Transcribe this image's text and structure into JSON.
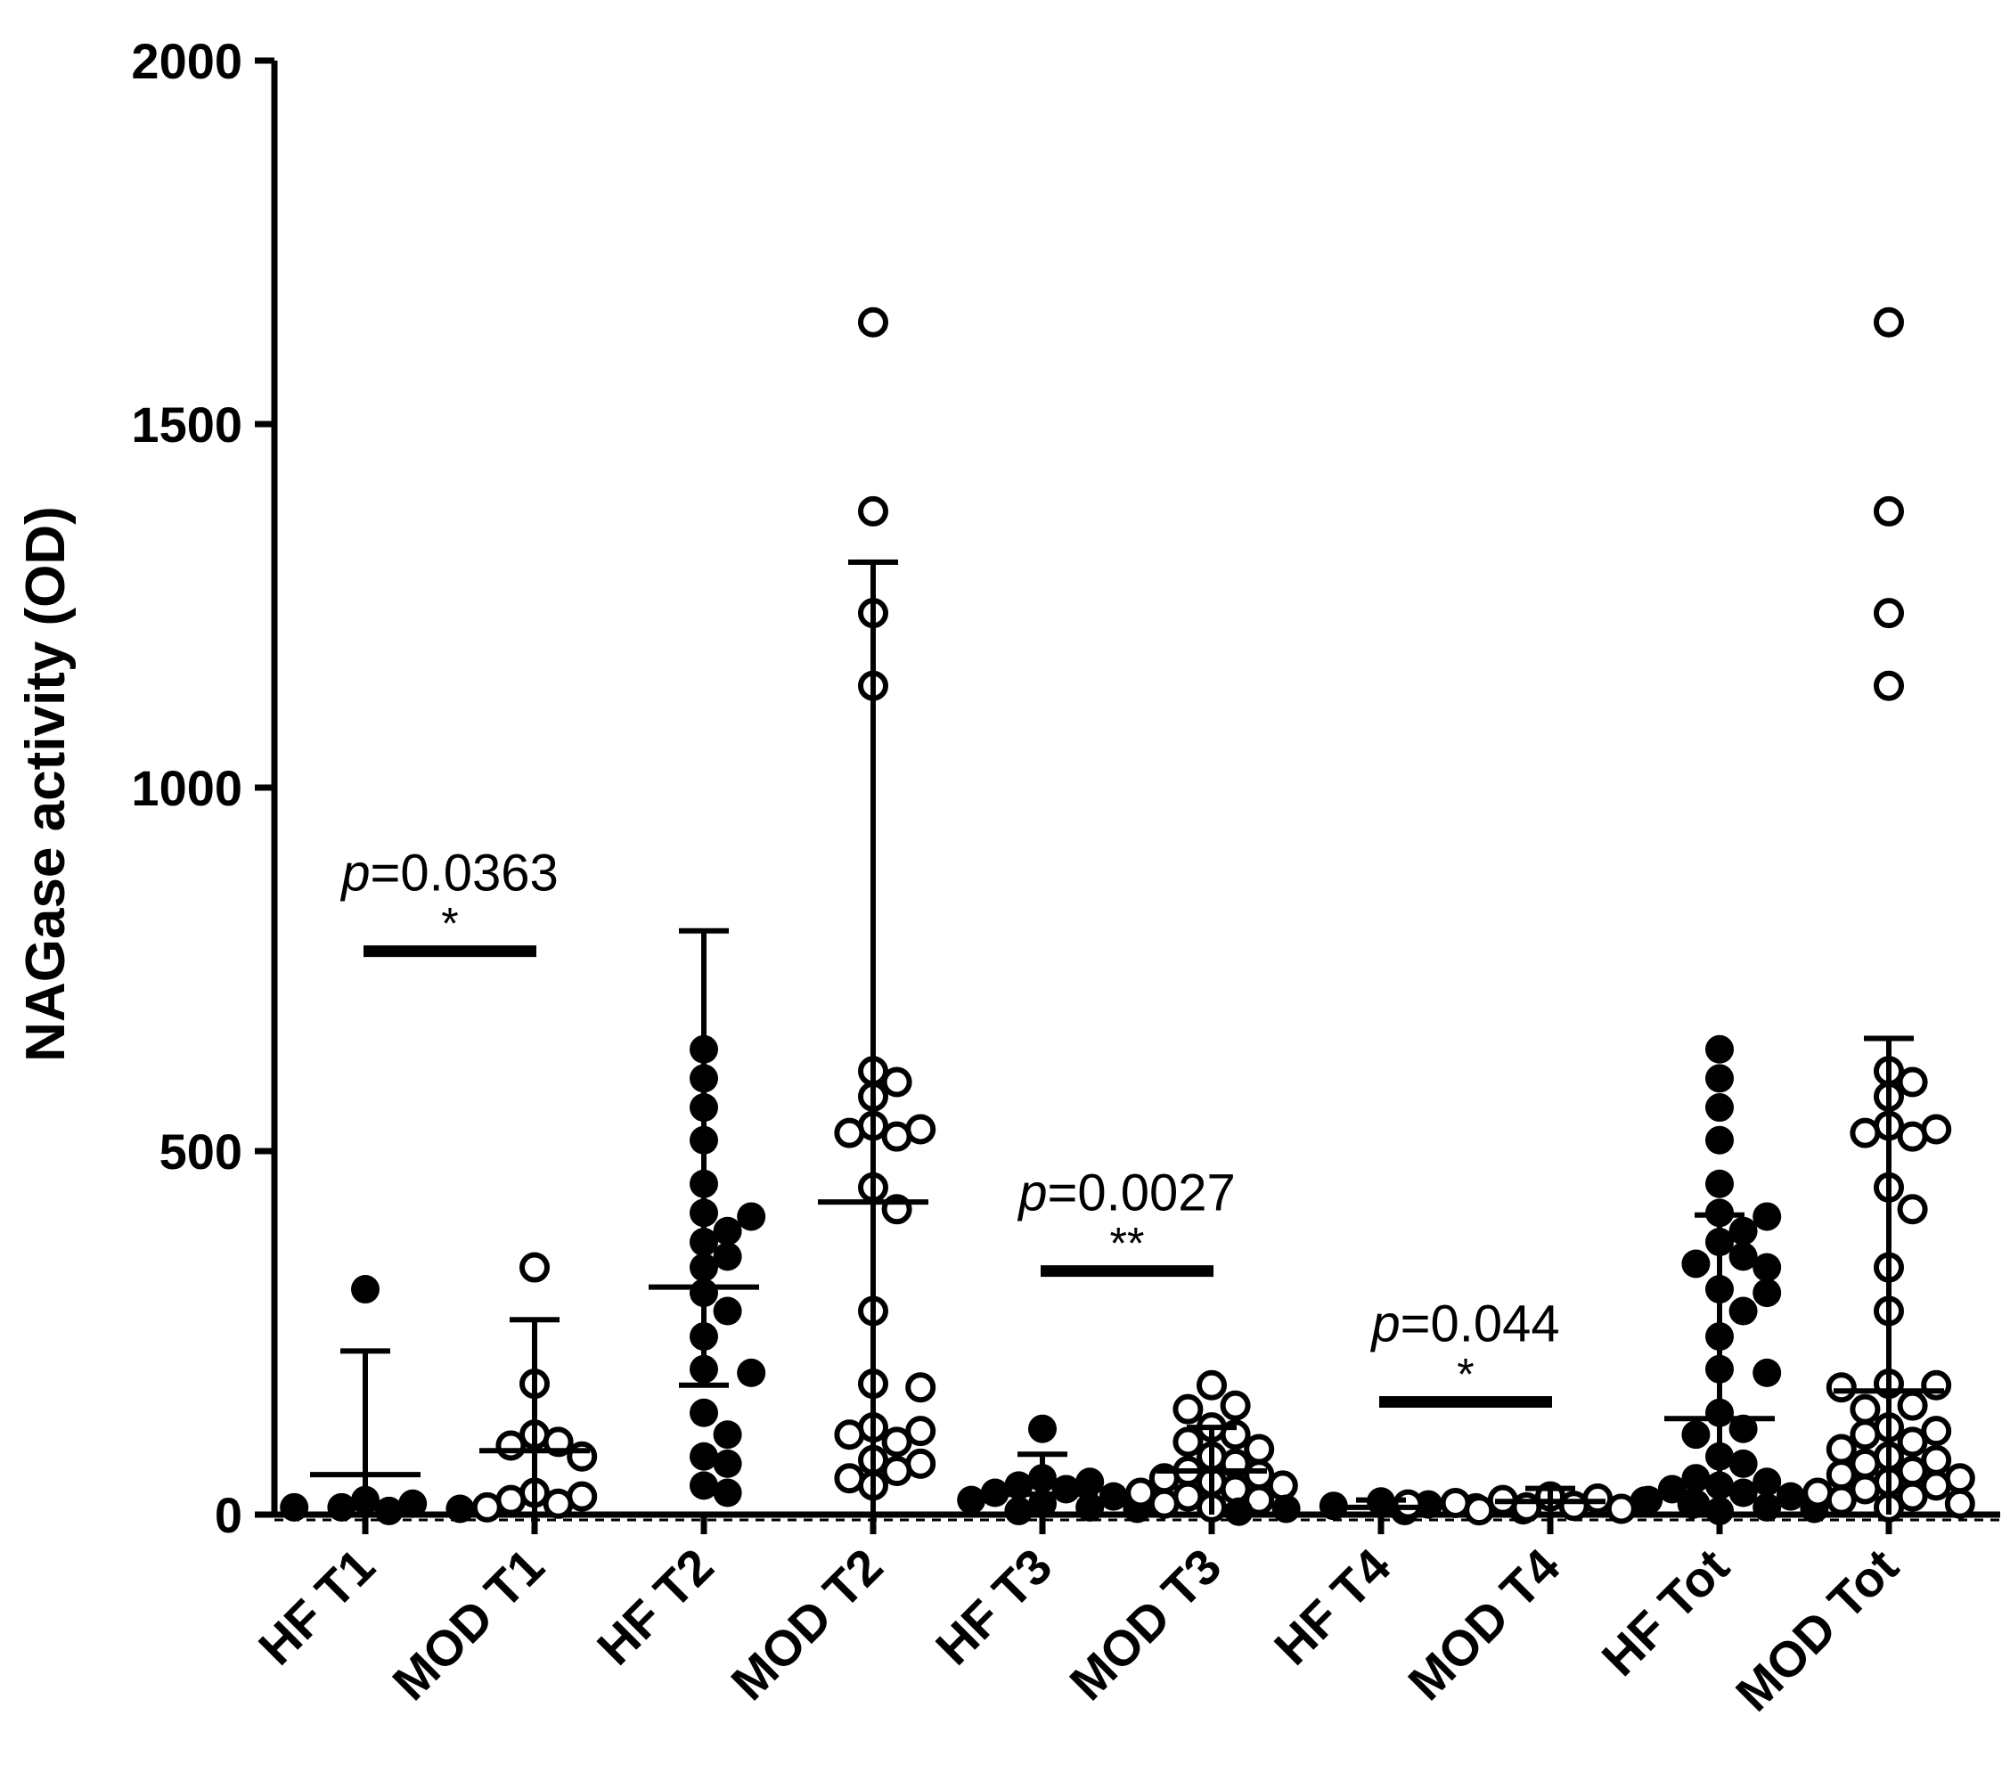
{
  "chart_data": {
    "type": "scatter",
    "title": "",
    "xlabel": "",
    "ylabel": "NAGase activity (OD)",
    "ylim": [
      0,
      2000
    ],
    "yticks": [
      "0",
      "500",
      "1000",
      "1500",
      "2000"
    ],
    "grid": false,
    "legend": "none",
    "groups": [
      {
        "name": "HF T1",
        "filled": true,
        "mean": 55,
        "sd_upper": 170,
        "points": [
          310,
          20,
          15,
          10,
          10,
          8,
          5
        ]
      },
      {
        "name": "MOD T1",
        "filled": false,
        "mean": 88,
        "sd_upper": 180,
        "points": [
          340,
          180,
          110,
          100,
          95,
          80,
          30,
          25,
          20,
          15,
          10
        ]
      },
      {
        "name": "HF T2",
        "filled": true,
        "mean": 313,
        "sd_upper": 490,
        "sd_lower": 135,
        "points": [
          640,
          600,
          560,
          515,
          455,
          415,
          410,
          390,
          375,
          355,
          340,
          305,
          280,
          245,
          200,
          195,
          140,
          110,
          80,
          70,
          40,
          30
        ]
      },
      {
        "name": "MOD T2",
        "filled": false,
        "mean": 430,
        "sd_upper": 880,
        "points": [
          1640,
          1380,
          1240,
          1140,
          610,
          595,
          575,
          535,
          530,
          525,
          520,
          450,
          420,
          280,
          180,
          175,
          120,
          115,
          110,
          100,
          75,
          70,
          60,
          50,
          40
        ]
      },
      {
        "name": "HF T3",
        "filled": true,
        "mean": 28,
        "sd_upper": 55,
        "points": [
          118,
          50,
          45,
          40,
          35,
          30,
          25,
          20,
          15,
          10,
          8,
          5
        ]
      },
      {
        "name": "MOD T3",
        "filled": false,
        "mean": 60,
        "sd_upper": 60,
        "points": [
          178,
          150,
          145,
          120,
          110,
          100,
          90,
          80,
          70,
          60,
          55,
          50,
          45,
          40,
          35,
          30,
          25,
          20,
          15,
          10
        ]
      },
      {
        "name": "HF T4",
        "filled": true,
        "mean": 10,
        "sd_upper": 10,
        "points": [
          18,
          14,
          12,
          10,
          8,
          6,
          5,
          4
        ]
      },
      {
        "name": "MOD T4",
        "filled": false,
        "mean": 18,
        "sd_upper": 18,
        "points": [
          25,
          22,
          20,
          18,
          16,
          15,
          14,
          12,
          10,
          8,
          6
        ]
      },
      {
        "name": "HF Tot",
        "filled": true,
        "mean": 132,
        "sd_upper": 280,
        "points": [
          640,
          600,
          560,
          515,
          455,
          415,
          410,
          390,
          375,
          355,
          345,
          340,
          310,
          305,
          280,
          245,
          200,
          195,
          140,
          118,
          110,
          80,
          70,
          50,
          45,
          40,
          35,
          30,
          25,
          20,
          15,
          10,
          8,
          5
        ]
      },
      {
        "name": "MOD Tot",
        "filled": false,
        "mean": 170,
        "sd_upper": 485,
        "points": [
          1640,
          1380,
          1240,
          1140,
          610,
          595,
          575,
          535,
          530,
          525,
          520,
          450,
          420,
          340,
          280,
          180,
          178,
          175,
          150,
          145,
          120,
          115,
          110,
          100,
          90,
          80,
          75,
          70,
          60,
          55,
          50,
          45,
          40,
          35,
          30,
          25,
          20,
          15,
          10
        ]
      }
    ],
    "comparisons": [
      {
        "p_prefix": "p",
        "p_value": "=0.0363",
        "stars": "*",
        "from": 0,
        "to": 1,
        "y": 775
      },
      {
        "p_prefix": "p",
        "p_value": "=0.0027",
        "stars": "**",
        "from": 4,
        "to": 5,
        "y": 335
      },
      {
        "p_prefix": "p",
        "p_value": "=0.044",
        "stars": "*",
        "from": 6,
        "to": 7,
        "y": 155
      }
    ]
  }
}
